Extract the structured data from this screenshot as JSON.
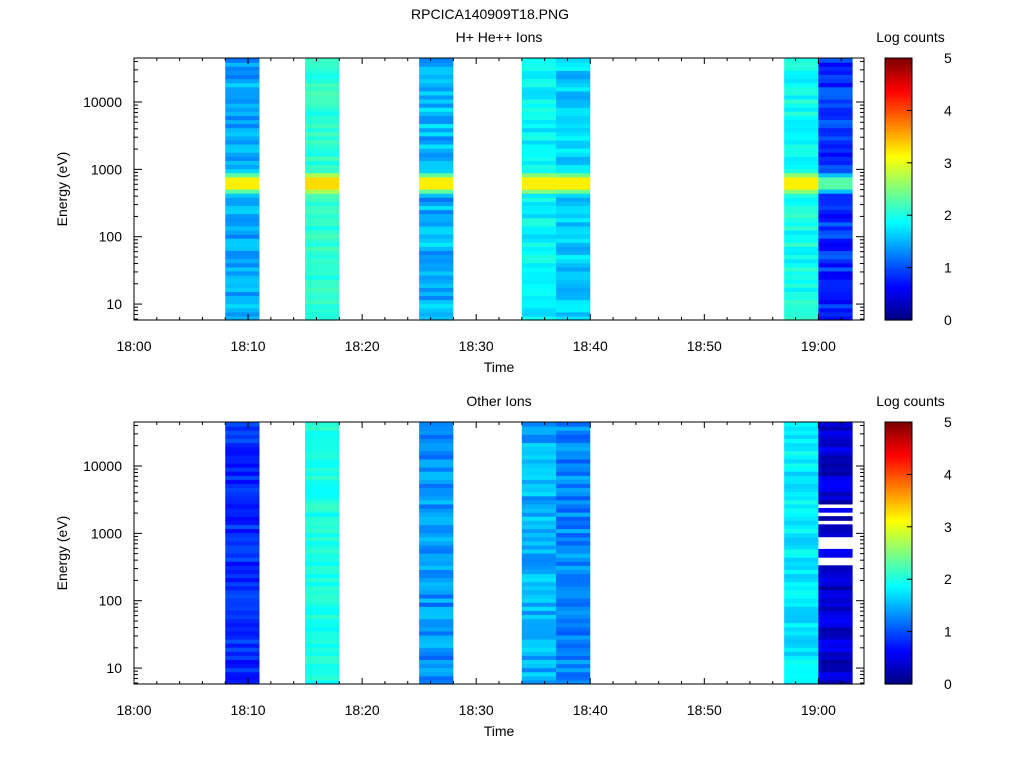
{
  "figure": {
    "title": "RPCICA140909T18.PNG"
  },
  "colormap": [
    "#00007f",
    "#0000ff",
    "#007fff",
    "#00ffff",
    "#7fff7f",
    "#ffff00",
    "#ff7f00",
    "#ff0000",
    "#7f0000"
  ],
  "chart_data": [
    {
      "type": "heatmap",
      "title": "H+ He++ Ions",
      "xlabel": "Time",
      "ylabel": "Energy (eV)",
      "yscale": "log",
      "ylim": [
        5.8,
        45000
      ],
      "xlim": [
        "18:00",
        "19:04"
      ],
      "xticks": [
        "18:00",
        "18:10",
        "18:20",
        "18:30",
        "18:40",
        "18:50",
        "19:00"
      ],
      "yticks": [
        "10",
        "100",
        "1000",
        "10000"
      ],
      "colorbar": {
        "label": "Log counts",
        "range": [
          0,
          5
        ],
        "ticks": [
          "0",
          "1",
          "2",
          "3",
          "4",
          "5"
        ]
      },
      "columns": [
        {
          "start": "18:08",
          "end": "18:11",
          "base": 1.45,
          "jitter": 0.25,
          "peak": 3.2
        },
        {
          "start": "18:15",
          "end": "18:18",
          "base": 2.1,
          "jitter": 0.15,
          "peak": 3.3
        },
        {
          "start": "18:25",
          "end": "18:28",
          "base": 1.5,
          "jitter": 0.3,
          "peak": 3.2
        },
        {
          "start": "18:34",
          "end": "18:37",
          "base": 1.85,
          "jitter": 0.2,
          "peak": 3.2
        },
        {
          "start": "18:37",
          "end": "18:40",
          "base": 1.65,
          "jitter": 0.25,
          "peak": 3.2
        },
        {
          "start": "18:57",
          "end": "19:00",
          "base": 1.95,
          "jitter": 0.2,
          "peak": 3.2
        },
        {
          "start": "19:00",
          "end": "19:03",
          "base": 0.85,
          "jitter": 0.3,
          "peak": 2.3
        }
      ]
    },
    {
      "type": "heatmap",
      "title": "Other Ions",
      "xlabel": "Time",
      "ylabel": "Energy (eV)",
      "yscale": "log",
      "ylim": [
        5.8,
        45000
      ],
      "xlim": [
        "18:00",
        "19:04"
      ],
      "xticks": [
        "18:00",
        "18:10",
        "18:20",
        "18:30",
        "18:40",
        "18:50",
        "19:00"
      ],
      "yticks": [
        "10",
        "100",
        "1000",
        "10000"
      ],
      "colorbar": {
        "label": "Log counts",
        "range": [
          0,
          5
        ],
        "ticks": [
          "0",
          "1",
          "2",
          "3",
          "4",
          "5"
        ]
      },
      "columns": [
        {
          "start": "18:08",
          "end": "18:11",
          "base": 0.85,
          "jitter": 0.2,
          "peak": null
        },
        {
          "start": "18:15",
          "end": "18:18",
          "base": 2.0,
          "jitter": 0.15,
          "peak": null
        },
        {
          "start": "18:25",
          "end": "18:28",
          "base": 1.35,
          "jitter": 0.25,
          "peak": null
        },
        {
          "start": "18:34",
          "end": "18:37",
          "base": 1.5,
          "jitter": 0.25,
          "peak": null
        },
        {
          "start": "18:37",
          "end": "18:40",
          "base": 1.3,
          "jitter": 0.25,
          "peak": null
        },
        {
          "start": "18:57",
          "end": "19:00",
          "base": 1.8,
          "jitter": 0.2,
          "peak": null
        },
        {
          "start": "19:00",
          "end": "19:03",
          "base": 0.4,
          "jitter": 0.25,
          "peak": null,
          "gaps": true
        }
      ]
    }
  ]
}
